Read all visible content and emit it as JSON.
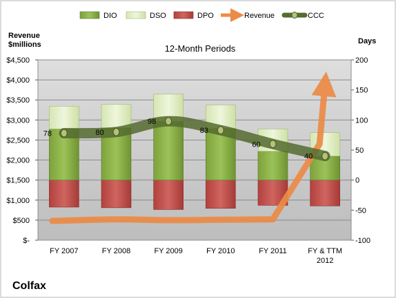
{
  "chart_data": {
    "type": "bar",
    "title": "12-Month Periods",
    "company": "Colfax",
    "ylabel_left": "Revenue\n$millions",
    "ylabel_right": "Days",
    "categories": [
      [
        "FY 2007"
      ],
      [
        "FY 2008"
      ],
      [
        "FY 2009"
      ],
      [
        "FY 2010"
      ],
      [
        "FY 2011"
      ],
      [
        "FY & TTM",
        "2012"
      ]
    ],
    "y_left": {
      "min": 0,
      "max": 4500,
      "step": 500,
      "tick_labels": [
        "$-",
        "$500",
        "$1,000",
        "$1,500",
        "$2,000",
        "$2,500",
        "$3,000",
        "$3,500",
        "$4,000",
        "$4,500"
      ]
    },
    "y_right": {
      "min": -100,
      "max": 200,
      "step": 50,
      "tick_labels": [
        "-100",
        "-50",
        "0",
        "50",
        "100",
        "150",
        "200"
      ]
    },
    "grid": true,
    "legend_position": "top",
    "series": [
      {
        "name": "DIO",
        "kind": "bar-stack-positive",
        "axis": "right",
        "color": "#8fb34a",
        "values": [
          85,
          87,
          98,
          86,
          48,
          40
        ]
      },
      {
        "name": "DSO",
        "kind": "bar-stack-positive",
        "axis": "right",
        "color": "#e2efc6",
        "values": [
          38,
          39,
          45,
          39,
          37,
          39
        ]
      },
      {
        "name": "DPO",
        "kind": "bar-stack-negative",
        "axis": "right",
        "color": "#c0504d",
        "values": [
          -45,
          -46,
          -49,
          -47,
          -42,
          -43
        ]
      },
      {
        "name": "Revenue",
        "kind": "line-arrow",
        "axis": "left",
        "color": "#ec8b47",
        "values": [
          480,
          520,
          500,
          510,
          520,
          3900
        ]
      },
      {
        "name": "CCC",
        "kind": "line-markers",
        "axis": "right",
        "color": "#556b2f",
        "values": [
          78,
          80,
          98,
          83,
          60,
          40
        ],
        "data_labels": [
          "78",
          "80",
          "98",
          "83",
          "60",
          "40"
        ]
      }
    ]
  }
}
